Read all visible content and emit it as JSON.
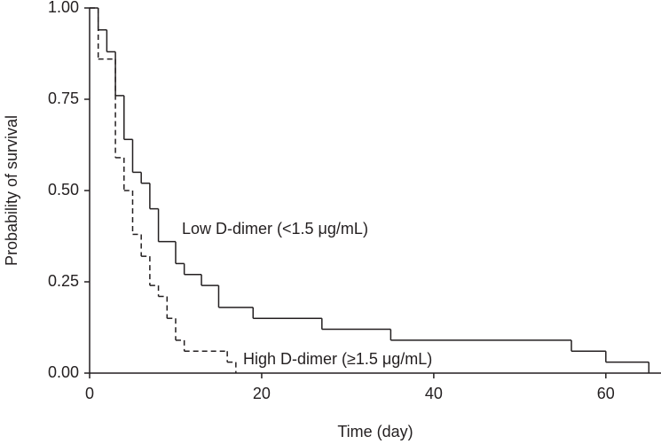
{
  "chart_data": {
    "type": "step",
    "xlabel": "Time (day)",
    "ylabel": "Probability of survival",
    "xlim": [
      0,
      66
    ],
    "ylim": [
      0,
      1
    ],
    "xticks": [
      0,
      20,
      40,
      60
    ],
    "yticks": [
      {
        "value": 0,
        "label": "0.00"
      },
      {
        "value": 0.25,
        "label": "0.25"
      },
      {
        "value": 0.5,
        "label": "0.50"
      },
      {
        "value": 0.75,
        "label": "0.75"
      },
      {
        "value": 1,
        "label": "1.00"
      }
    ],
    "series": [
      {
        "name": "Low D-dimer (<1.5 μg/mL)",
        "color": "#231f20",
        "dashed": false,
        "x": [
          0,
          1,
          2,
          3,
          4,
          5,
          6,
          7,
          8,
          10,
          11,
          13,
          15,
          19,
          27,
          35,
          56,
          60,
          65
        ],
        "values": [
          1.0,
          0.94,
          0.88,
          0.76,
          0.64,
          0.55,
          0.52,
          0.45,
          0.36,
          0.3,
          0.27,
          0.24,
          0.18,
          0.15,
          0.12,
          0.09,
          0.06,
          0.03,
          0
        ]
      },
      {
        "name": "High D-dimer (≥1.5 μg/mL)",
        "color": "#231f20",
        "dashed": true,
        "x": [
          0,
          1,
          3,
          4,
          5,
          6,
          7,
          8,
          9,
          10,
          11,
          16,
          17
        ],
        "values": [
          1.0,
          0.86,
          0.59,
          0.5,
          0.38,
          0.32,
          0.24,
          0.21,
          0.15,
          0.09,
          0.06,
          0.03,
          0
        ]
      }
    ]
  }
}
